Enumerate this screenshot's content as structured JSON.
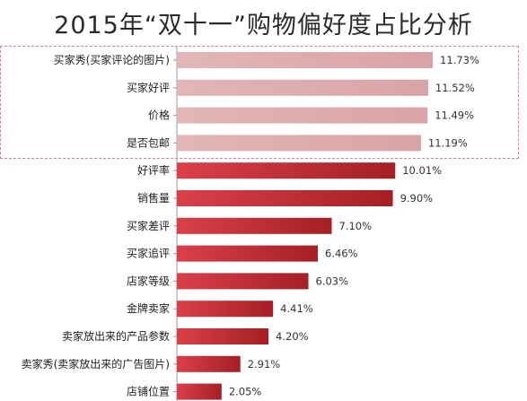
{
  "title": "2015年“双十一”购物偏好度占比分析",
  "chart_data": {
    "type": "bar",
    "orientation": "horizontal",
    "title": "2015年“双十一”购物偏好度占比分析",
    "xlabel": "",
    "ylabel": "",
    "categories": [
      "买家秀(买家评论的图片)",
      "买家好评",
      "价格",
      "是否包邮",
      "好评率",
      "销售量",
      "买家差评",
      "买家追评",
      "店家等级",
      "金牌卖家",
      "卖家放出来的产品参数",
      "卖家秀(卖家放出来的广告图片)",
      "店铺位置"
    ],
    "values": [
      11.73,
      11.52,
      11.49,
      11.19,
      10.01,
      9.9,
      7.1,
      6.46,
      6.03,
      4.41,
      4.2,
      2.91,
      2.05
    ],
    "value_labels": [
      "11.73%",
      "11.52%",
      "11.49%",
      "11.19%",
      "10.01%",
      "9.90%",
      "7.10%",
      "6.46%",
      "6.03%",
      "4.41%",
      "4.20%",
      "2.91%",
      "2.05%"
    ],
    "highlighted_top": 4,
    "grid": false,
    "legend": "none",
    "colors": {
      "highlight_bar": "#d9a3a6",
      "bar_dark": "#a51f25",
      "bar_light": "#d9404a",
      "highlight_border": "#d9828a"
    }
  }
}
